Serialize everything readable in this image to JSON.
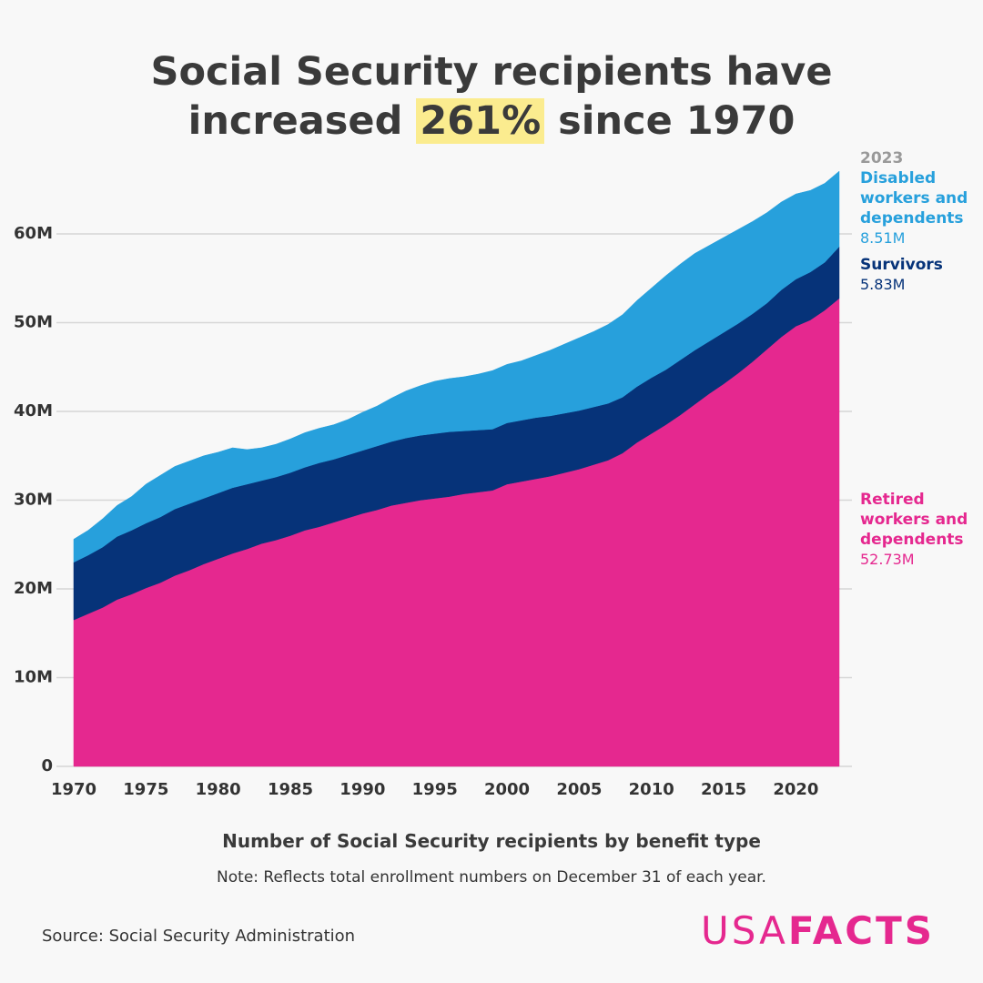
{
  "chart_data": {
    "type": "stacked-area",
    "title": {
      "line1": "Social Security recipients have",
      "before": "increased",
      "highlight": "261%",
      "after": "since 1970"
    },
    "x_title": "Number of Social Security recipients by benefit type",
    "note": "Note: Reflects total enrollment numbers on December 31 of each year.",
    "source": "Source: Social Security Administration",
    "logo": {
      "light": "USA",
      "bold": "FACTS"
    },
    "x": [
      1970,
      1971,
      1972,
      1973,
      1974,
      1975,
      1976,
      1977,
      1978,
      1979,
      1980,
      1981,
      1982,
      1983,
      1984,
      1985,
      1986,
      1987,
      1988,
      1989,
      1990,
      1991,
      1992,
      1993,
      1994,
      1995,
      1996,
      1997,
      1998,
      1999,
      2000,
      2001,
      2002,
      2003,
      2004,
      2005,
      2006,
      2007,
      2008,
      2009,
      2010,
      2011,
      2012,
      2013,
      2014,
      2015,
      2016,
      2017,
      2018,
      2019,
      2020,
      2021,
      2022,
      2023
    ],
    "series": [
      {
        "name": "Retired workers and dependents",
        "color": "#e5288f",
        "last_value_label": "52.73M",
        "values": [
          16.5,
          17.2,
          17.9,
          18.8,
          19.4,
          20.1,
          20.7,
          21.5,
          22.1,
          22.8,
          23.4,
          24.0,
          24.5,
          25.1,
          25.5,
          26.0,
          26.6,
          27.0,
          27.5,
          28.0,
          28.5,
          28.9,
          29.4,
          29.7,
          30.0,
          30.2,
          30.4,
          30.7,
          30.9,
          31.1,
          31.8,
          32.1,
          32.4,
          32.7,
          33.1,
          33.5,
          34.0,
          34.5,
          35.3,
          36.5,
          37.5,
          38.5,
          39.6,
          40.8,
          42.0,
          43.1,
          44.3,
          45.6,
          47.0,
          48.4,
          49.6,
          50.3,
          51.4,
          52.73
        ]
      },
      {
        "name": "Survivors",
        "color": "#063379",
        "last_value_label": "5.83M",
        "values": [
          6.5,
          6.6,
          6.8,
          7.1,
          7.2,
          7.3,
          7.4,
          7.5,
          7.5,
          7.4,
          7.4,
          7.4,
          7.3,
          7.1,
          7.1,
          7.1,
          7.1,
          7.2,
          7.1,
          7.1,
          7.1,
          7.2,
          7.2,
          7.3,
          7.3,
          7.3,
          7.3,
          7.1,
          7.0,
          6.9,
          6.9,
          6.9,
          6.9,
          6.8,
          6.7,
          6.6,
          6.5,
          6.4,
          6.3,
          6.3,
          6.3,
          6.2,
          6.2,
          6.1,
          5.9,
          5.8,
          5.6,
          5.4,
          5.2,
          5.3,
          5.3,
          5.4,
          5.4,
          5.83
        ]
      },
      {
        "name": "Disabled workers and dependents",
        "color": "#27a0dc",
        "last_value_label": "8.51M",
        "values": [
          2.6,
          2.8,
          3.2,
          3.5,
          3.8,
          4.4,
          4.7,
          4.8,
          4.8,
          4.8,
          4.6,
          4.5,
          3.9,
          3.7,
          3.7,
          3.8,
          3.9,
          3.9,
          3.9,
          4.0,
          4.3,
          4.5,
          4.9,
          5.3,
          5.6,
          5.9,
          6.0,
          6.1,
          6.3,
          6.6,
          6.6,
          6.7,
          7.0,
          7.4,
          7.8,
          8.2,
          8.5,
          8.9,
          9.3,
          9.7,
          10.1,
          10.6,
          10.8,
          10.9,
          10.8,
          10.7,
          10.6,
          10.4,
          10.2,
          9.9,
          9.6,
          9.2,
          8.9,
          8.51
        ]
      }
    ],
    "xlim": [
      1970,
      2023
    ],
    "xticks": [
      1970,
      1975,
      1980,
      1985,
      1990,
      1995,
      2000,
      2005,
      2010,
      2015,
      2020
    ],
    "ylim": [
      0,
      70
    ],
    "yticks": [
      0,
      {
        "value": 10,
        "label": "10M"
      },
      {
        "value": 20,
        "label": "20M"
      },
      {
        "value": 30,
        "label": "30M"
      },
      {
        "value": 40,
        "label": "40M"
      },
      {
        "value": 50,
        "label": "50M"
      },
      {
        "value": 60,
        "label": "60M"
      }
    ],
    "grid": true
  }
}
